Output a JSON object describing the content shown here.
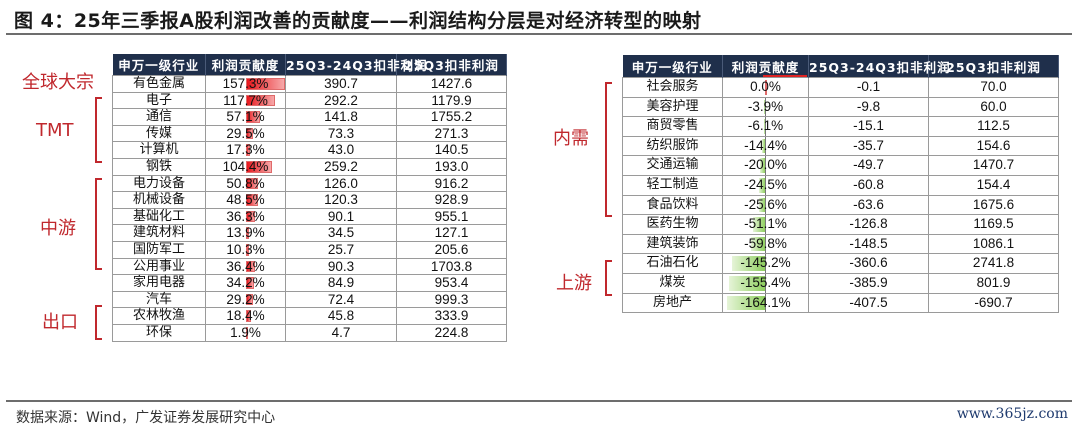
{
  "figure": {
    "title": "图 4：25年三季报A股利润改善的贡献度——利润结构分层是对经济转型的映射",
    "source": "数据来源：Wind，广发证券发展研究中心",
    "watermark": "www.365jz.com"
  },
  "columns": [
    "申万一级行业",
    "利润贡献度",
    "25Q3-24Q3扣非利润",
    "25Q3扣非利润"
  ],
  "colors": {
    "header_bg": "#1f2f4b",
    "positive_bar": "#e8161c",
    "negative_bar": "#8fcf5f",
    "group_label": "#c0282d"
  },
  "left_table": {
    "groups": [
      {
        "label": "全球大宗"
      },
      {
        "label": "TMT"
      },
      {
        "label": "中游"
      },
      {
        "label": "出口"
      }
    ],
    "rows": [
      {
        "industry": "有色金属",
        "contribution": "157.3%",
        "contrib_value": 157.3,
        "delta": "390.7",
        "profit": "1427.6"
      },
      {
        "industry": "电子",
        "contribution": "117.7%",
        "contrib_value": 117.7,
        "delta": "292.2",
        "profit": "1179.9"
      },
      {
        "industry": "通信",
        "contribution": "57.1%",
        "contrib_value": 57.1,
        "delta": "141.8",
        "profit": "1755.2"
      },
      {
        "industry": "传媒",
        "contribution": "29.5%",
        "contrib_value": 29.5,
        "delta": "73.3",
        "profit": "271.3"
      },
      {
        "industry": "计算机",
        "contribution": "17.3%",
        "contrib_value": 17.3,
        "delta": "43.0",
        "profit": "140.5"
      },
      {
        "industry": "钢铁",
        "contribution": "104.4%",
        "contrib_value": 104.4,
        "delta": "259.2",
        "profit": "193.0"
      },
      {
        "industry": "电力设备",
        "contribution": "50.8%",
        "contrib_value": 50.8,
        "delta": "126.0",
        "profit": "916.2"
      },
      {
        "industry": "机械设备",
        "contribution": "48.5%",
        "contrib_value": 48.5,
        "delta": "120.3",
        "profit": "928.9"
      },
      {
        "industry": "基础化工",
        "contribution": "36.3%",
        "contrib_value": 36.3,
        "delta": "90.1",
        "profit": "955.1"
      },
      {
        "industry": "建筑材料",
        "contribution": "13.9%",
        "contrib_value": 13.9,
        "delta": "34.5",
        "profit": "127.1"
      },
      {
        "industry": "国防军工",
        "contribution": "10.3%",
        "contrib_value": 10.3,
        "delta": "25.7",
        "profit": "205.6"
      },
      {
        "industry": "公用事业",
        "contribution": "36.4%",
        "contrib_value": 36.4,
        "delta": "90.3",
        "profit": "1703.8"
      },
      {
        "industry": "家用电器",
        "contribution": "34.2%",
        "contrib_value": 34.2,
        "delta": "84.9",
        "profit": "953.4"
      },
      {
        "industry": "汽车",
        "contribution": "29.2%",
        "contrib_value": 29.2,
        "delta": "72.4",
        "profit": "999.3"
      },
      {
        "industry": "农林牧渔",
        "contribution": "18.4%",
        "contrib_value": 18.4,
        "delta": "45.8",
        "profit": "333.9"
      },
      {
        "industry": "环保",
        "contribution": "1.9%",
        "contrib_value": 1.9,
        "delta": "4.7",
        "profit": "224.8"
      }
    ]
  },
  "right_table": {
    "groups": [
      {
        "label": "内需"
      },
      {
        "label": "上游"
      }
    ],
    "rows": [
      {
        "industry": "社会服务",
        "contribution": "0.0%",
        "contrib_value": 0.0,
        "delta": "-0.1",
        "profit": "70.0"
      },
      {
        "industry": "美容护理",
        "contribution": "-3.9%",
        "contrib_value": -3.9,
        "delta": "-9.8",
        "profit": "60.0"
      },
      {
        "industry": "商贸零售",
        "contribution": "-6.1%",
        "contrib_value": -6.1,
        "delta": "-15.1",
        "profit": "112.5"
      },
      {
        "industry": "纺织服饰",
        "contribution": "-14.4%",
        "contrib_value": -14.4,
        "delta": "-35.7",
        "profit": "154.6"
      },
      {
        "industry": "交通运输",
        "contribution": "-20.0%",
        "contrib_value": -20.0,
        "delta": "-49.7",
        "profit": "1470.7"
      },
      {
        "industry": "轻工制造",
        "contribution": "-24.5%",
        "contrib_value": -24.5,
        "delta": "-60.8",
        "profit": "154.4"
      },
      {
        "industry": "食品饮料",
        "contribution": "-25.6%",
        "contrib_value": -25.6,
        "delta": "-63.6",
        "profit": "1675.6"
      },
      {
        "industry": "医药生物",
        "contribution": "-51.1%",
        "contrib_value": -51.1,
        "delta": "-126.8",
        "profit": "1169.5"
      },
      {
        "industry": "建筑装饰",
        "contribution": "-59.8%",
        "contrib_value": -59.8,
        "delta": "-148.5",
        "profit": "1086.1"
      },
      {
        "industry": "石油石化",
        "contribution": "-145.2%",
        "contrib_value": -145.2,
        "delta": "-360.6",
        "profit": "2741.8"
      },
      {
        "industry": "煤炭",
        "contribution": "-155.4%",
        "contrib_value": -155.4,
        "delta": "-385.9",
        "profit": "801.9"
      },
      {
        "industry": "房地产",
        "contribution": "-164.1%",
        "contrib_value": -164.1,
        "delta": "-407.5",
        "profit": "-690.7"
      }
    ]
  }
}
